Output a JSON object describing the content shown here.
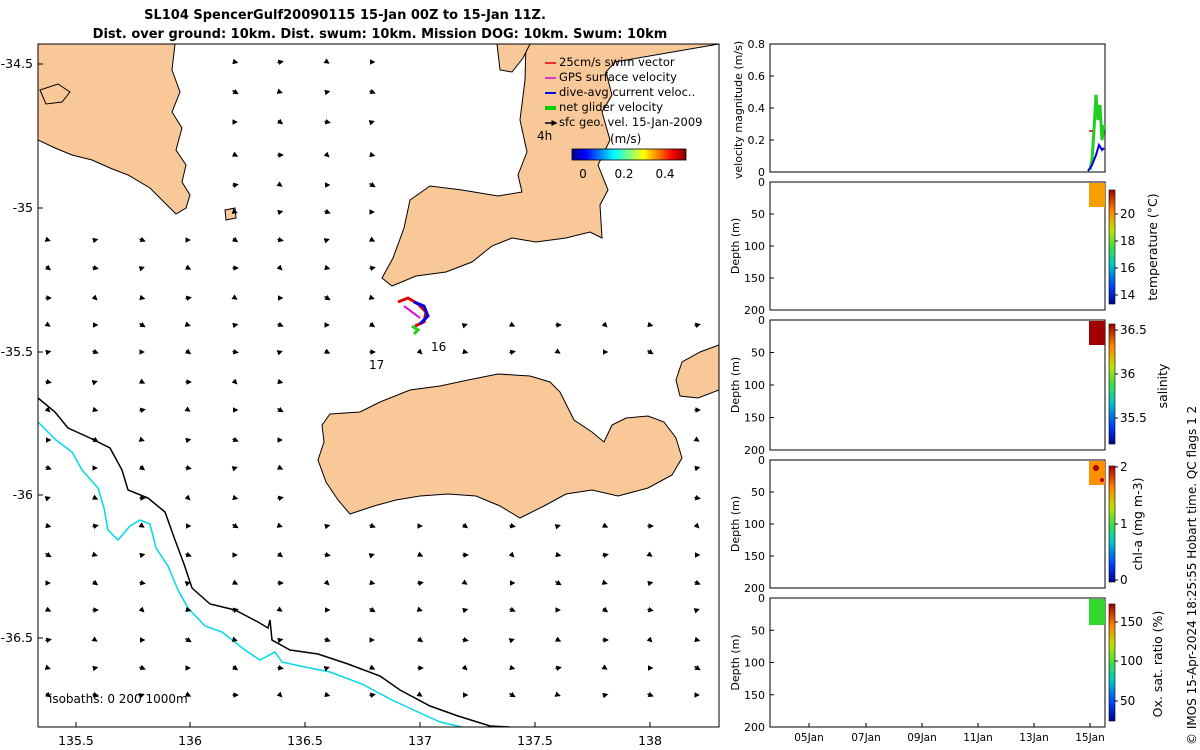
{
  "title": {
    "line1": "SL104 SpencerGulf20090115 15-Jan 00Z to 15-Jan 11Z.",
    "line2": "Dist. over ground: 10km. Dist. swum: 10km. Mission DOG: 10km. Swum: 10km"
  },
  "credit": "© IMOS 15-Apr-2024 18:25:55 Hobart time. QC flags 1  2",
  "map": {
    "x_ticks": [
      "135.5",
      "136",
      "136.5",
      "137",
      "137.5",
      "138"
    ],
    "y_ticks": [
      "-34.5",
      "-35",
      "-35.5",
      "-36",
      "-36.5"
    ],
    "legend": [
      {
        "label": "25cm/s swim vector",
        "color": "#e00000"
      },
      {
        "label": "GPS surface velocity",
        "color": "#e000e0"
      },
      {
        "label": "dive-avg current veloc..",
        "color": "#0000e0"
      },
      {
        "label": "net glider velocity",
        "color": "#00d000"
      },
      {
        "label": "sfc geo. vel. 15-Jan-2009",
        "color": "#000000"
      }
    ],
    "time_label": "4h",
    "colorbar_unit": "(m/s)",
    "colorbar_ticks": [
      "0",
      "0.2",
      "0.4"
    ],
    "labels": {
      "day16": "16",
      "day17": "17"
    },
    "isobaths": "isobaths: 0   200  1000m",
    "land_color": "#f9c898",
    "isobath_200_color": "#000000",
    "isobath_1000_color": "#00d8e8"
  },
  "panels": {
    "velocity": {
      "ylabel": "velocity magnitude (m/s)",
      "y_ticks": [
        "0",
        "0.2",
        "0.4",
        "0.6",
        "0.8"
      ]
    },
    "depth_ylabel": "Depth (m)",
    "depth_ticks": [
      "0",
      "50",
      "100",
      "150",
      "200"
    ],
    "temperature": {
      "label": "temperature (°C)",
      "ticks": [
        "20",
        "18",
        "16",
        "14"
      ]
    },
    "salinity": {
      "label": "salinity",
      "ticks": [
        "36.5",
        "36",
        "35.5"
      ]
    },
    "chla": {
      "label": "chl-a (mg m-3)",
      "ticks": [
        "2",
        "1",
        "0"
      ]
    },
    "oxygen": {
      "label": "Ox. sat. ratio (%)",
      "ticks": [
        "150",
        "100",
        "50"
      ]
    },
    "time_ticks": [
      "05Jan",
      "07Jan",
      "09Jan",
      "11Jan",
      "13Jan",
      "15Jan"
    ]
  }
}
